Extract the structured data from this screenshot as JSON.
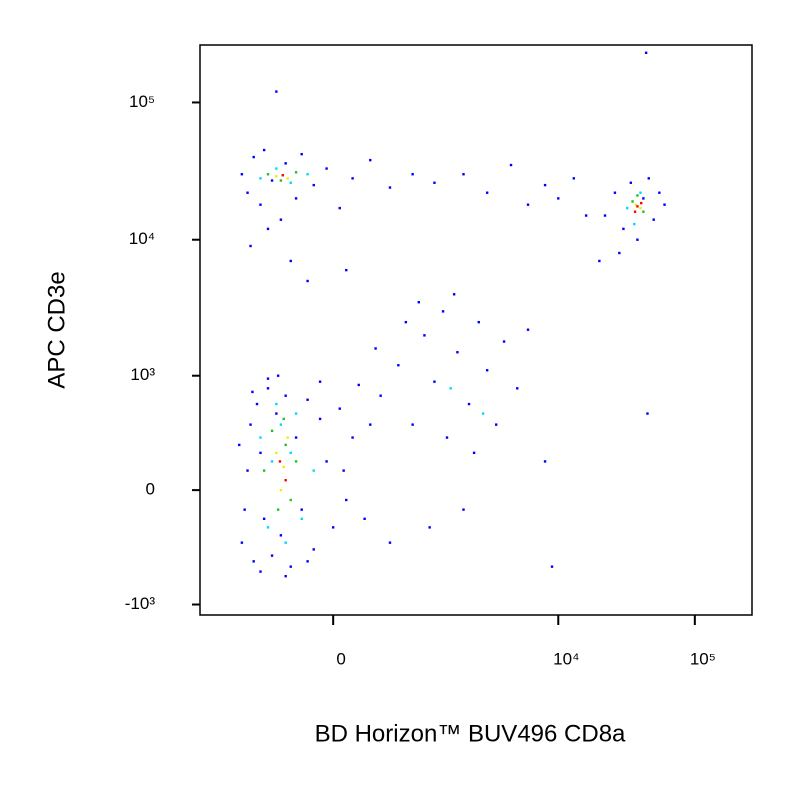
{
  "chart_data": {
    "type": "scatter",
    "scale": "biexponential",
    "x_label": "BD Horizon™ BUV496 CD8a",
    "y_label": "APC CD3e",
    "xlim": [
      -2100,
      262144
    ],
    "ylim": [
      -1200,
      262144
    ],
    "xticks": [
      0,
      {
        "value": 10000,
        "label": "10⁴"
      },
      {
        "value": 100000,
        "label": "10⁵"
      }
    ],
    "yticks": [
      {
        "value": -1000,
        "label": "-10³"
      },
      0,
      {
        "value": 1000,
        "label": "10³"
      },
      {
        "value": 10000,
        "label": "10⁴"
      },
      {
        "value": 100000,
        "label": "10⁵"
      }
    ],
    "grid": false,
    "series": [
      {
        "color": "#0000ff",
        "x": [
          -1000,
          -900,
          -850,
          -800,
          -750,
          -700,
          -650,
          -600,
          -550,
          -500,
          -450,
          -400,
          -350,
          -300,
          -250,
          -200,
          -150,
          -100,
          -50,
          0,
          50,
          100,
          150,
          200,
          -1050,
          -950,
          -700,
          -600,
          -400,
          -200,
          -100,
          80,
          250,
          300,
          -820,
          -480,
          400,
          600,
          800,
          1000,
          1200,
          1500,
          1800,
          2200,
          2600,
          3000,
          3500,
          4000,
          5000,
          6000,
          8000,
          9000,
          500,
          700,
          1100,
          1400,
          2000,
          350,
          900,
          1700,
          2400,
          -1000,
          -900,
          -800,
          -700,
          -650,
          -550,
          -450,
          -400,
          -300,
          -250,
          -150,
          -50,
          50,
          150,
          300,
          500,
          800,
          -850,
          -350,
          100,
          -600,
          -200,
          -500,
          1200,
          2000,
          3000,
          4500,
          6000,
          8000,
          10000,
          13000,
          16000,
          20000,
          22000,
          26000,
          30000,
          34000,
          38000,
          42000,
          46000,
          50000,
          55000,
          60000,
          28000,
          44000,
          45000
        ],
        "values": [
          -300,
          100,
          400,
          -450,
          600,
          200,
          -150,
          800,
          -400,
          500,
          -250,
          700,
          -500,
          300,
          -100,
          650,
          -350,
          450,
          150,
          -200,
          550,
          -50,
          300,
          850,
          250,
          -100,
          -550,
          950,
          -600,
          -450,
          900,
          100,
          -150,
          400,
          750,
          1000,
          700,
          1200,
          400,
          2000,
          900,
          300,
          1500,
          600,
          2500,
          1100,
          400,
          1800,
          800,
          2200,
          150,
          -500,
          -300,
          2500,
          -200,
          3000,
          -100,
          1600,
          3500,
          4000,
          200,
          30000,
          22000,
          40000,
          18000,
          45000,
          27000,
          14000,
          36000,
          20000,
          42000,
          25000,
          33000,
          17000,
          28000,
          38000,
          24000,
          30000,
          9000,
          7000,
          6000,
          12000,
          5000,
          120000,
          26000,
          30000,
          22000,
          35000,
          18000,
          25000,
          20000,
          28000,
          15000,
          7000,
          15000,
          22000,
          12000,
          26000,
          10000,
          20000,
          28000,
          14000,
          22000,
          18000,
          8000,
          230000,
          500
        ]
      },
      {
        "color": "#00d8ff",
        "x": [
          -700,
          -600,
          -550,
          -500,
          -400,
          -350,
          -300,
          -250,
          -450,
          -150,
          -700,
          -500,
          -350,
          -200,
          32000,
          40000,
          36000,
          1600,
          2800
        ],
        "values": [
          300,
          -200,
          150,
          600,
          -300,
          200,
          500,
          -150,
          400,
          100,
          28000,
          33000,
          26000,
          30000,
          17000,
          22000,
          13000,
          800,
          500
        ]
      },
      {
        "color": "#20c020",
        "x": [
          -650,
          -550,
          -480,
          -400,
          -350,
          -300,
          -420,
          -600,
          -450,
          -300,
          35000,
          42000,
          38000
        ],
        "values": [
          100,
          350,
          -100,
          250,
          -50,
          150,
          450,
          30000,
          27000,
          31000,
          19000,
          16000,
          21000
        ]
      },
      {
        "color": "#f0f000",
        "x": [
          -500,
          -450,
          -380,
          -420,
          -500,
          -380,
          37000,
          40000
        ],
        "values": [
          200,
          0,
          300,
          120,
          29000,
          28000,
          18000,
          17000
        ]
      },
      {
        "color": "#ff0000",
        "x": [
          -460,
          -400,
          -430,
          38000,
          40500,
          36500
        ],
        "values": [
          150,
          50,
          29500,
          17500,
          18500,
          16000
        ]
      }
    ]
  }
}
